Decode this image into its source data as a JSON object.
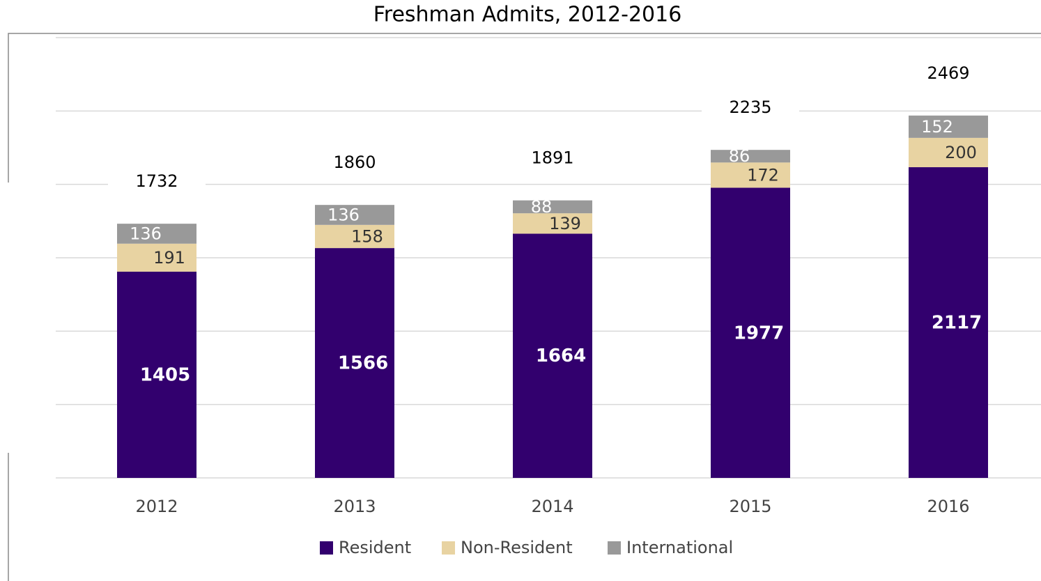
{
  "chart_data": {
    "type": "stacked_bar",
    "title": "Freshman Admits, 2012-2016",
    "categories": [
      "2012",
      "2013",
      "2014",
      "2015",
      "2016"
    ],
    "series": [
      {
        "name": "Resident",
        "color": "#32006e",
        "values": [
          1405,
          1566,
          1664,
          1977,
          2117
        ]
      },
      {
        "name": "Non-Resident",
        "color": "#e8d3a2",
        "values": [
          191,
          158,
          139,
          172,
          200
        ]
      },
      {
        "name": "International",
        "color": "#999999",
        "values": [
          136,
          136,
          88,
          86,
          152
        ]
      }
    ],
    "totals": [
      1732,
      1860,
      1891,
      2235,
      2469
    ],
    "ylim": [
      0,
      3000
    ],
    "yticks": [
      0,
      500,
      1000,
      1500,
      2000,
      2500,
      3000
    ],
    "grid": true
  }
}
